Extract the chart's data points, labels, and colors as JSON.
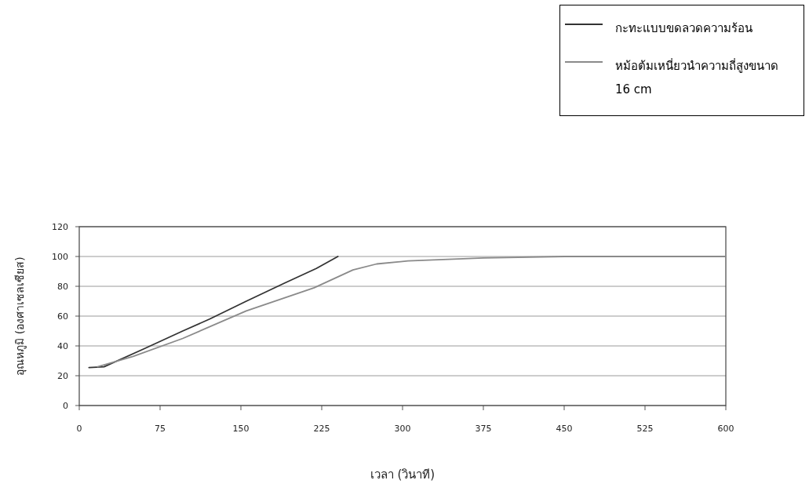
{
  "chart_data": {
    "type": "line",
    "xlabel": "เวลา (วินาที)",
    "ylabel": "อุณหภูมิ (องศาเซลเซียส)",
    "xlim": [
      0,
      600
    ],
    "xticks": [
      0,
      75,
      150,
      225,
      300,
      375,
      450,
      525,
      600
    ],
    "ylim": [
      0,
      120
    ],
    "yticks": [
      0,
      20,
      40,
      60,
      80,
      100,
      120
    ],
    "grid": "y",
    "legend": "top right",
    "series": [
      {
        "name": "กะทะแบบขดลวดความร้อน",
        "color": "#333333",
        "x": [
          9,
          23,
          60,
          96,
          121,
          155,
          190,
          220,
          240
        ],
        "values": [
          25.5,
          26,
          38,
          50,
          58,
          70,
          82,
          92,
          100
        ]
      },
      {
        "name": "หม้อต้มเหนี่ยวนำความถี่สูงขนาด 16 cm",
        "color": "#8a8a8a",
        "x": [
          17,
          50,
          96,
          155,
          218,
          254,
          276,
          305,
          375,
          450,
          525,
          600
        ],
        "values": [
          26,
          33,
          45,
          63.5,
          79,
          91,
          95,
          97,
          99,
          100,
          100,
          100
        ]
      }
    ]
  }
}
